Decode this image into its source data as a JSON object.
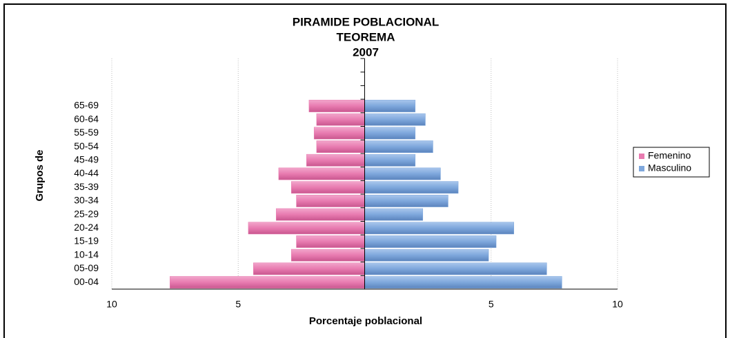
{
  "chart_data": {
    "type": "pyramid",
    "title": [
      "PIRAMIDE POBLACIONAL",
      "TEOREMA",
      "2007"
    ],
    "xlabel": "Porcentaje poblacional",
    "ylabel": "Grupos de",
    "categories": [
      "00-04",
      "05-09",
      "10-14",
      "15-19",
      "20-24",
      "25-29",
      "30-34",
      "35-39",
      "40-44",
      "45-49",
      "50-54",
      "55-59",
      "60-64",
      "65-69",
      null,
      null,
      null
    ],
    "series": [
      {
        "name": "Femenino",
        "color": "#e87bb0",
        "values": [
          -7.7,
          -4.4,
          -2.9,
          -2.7,
          -4.6,
          -3.5,
          -2.7,
          -2.9,
          -3.4,
          -2.3,
          -1.9,
          -2.0,
          -1.9,
          -2.2,
          null,
          null,
          null
        ]
      },
      {
        "name": "Masculino",
        "color": "#7ea7dc",
        "values": [
          7.8,
          7.2,
          4.9,
          5.2,
          5.9,
          2.3,
          3.3,
          3.7,
          3.0,
          2.0,
          2.7,
          2.0,
          2.4,
          2.0,
          null,
          null,
          null
        ]
      }
    ],
    "xlim": [
      -10,
      10
    ],
    "xticks": [
      {
        "value": -10,
        "label": "10"
      },
      {
        "value": -5,
        "label": "5"
      },
      5,
      10
    ],
    "grid": true,
    "legend": "right"
  }
}
